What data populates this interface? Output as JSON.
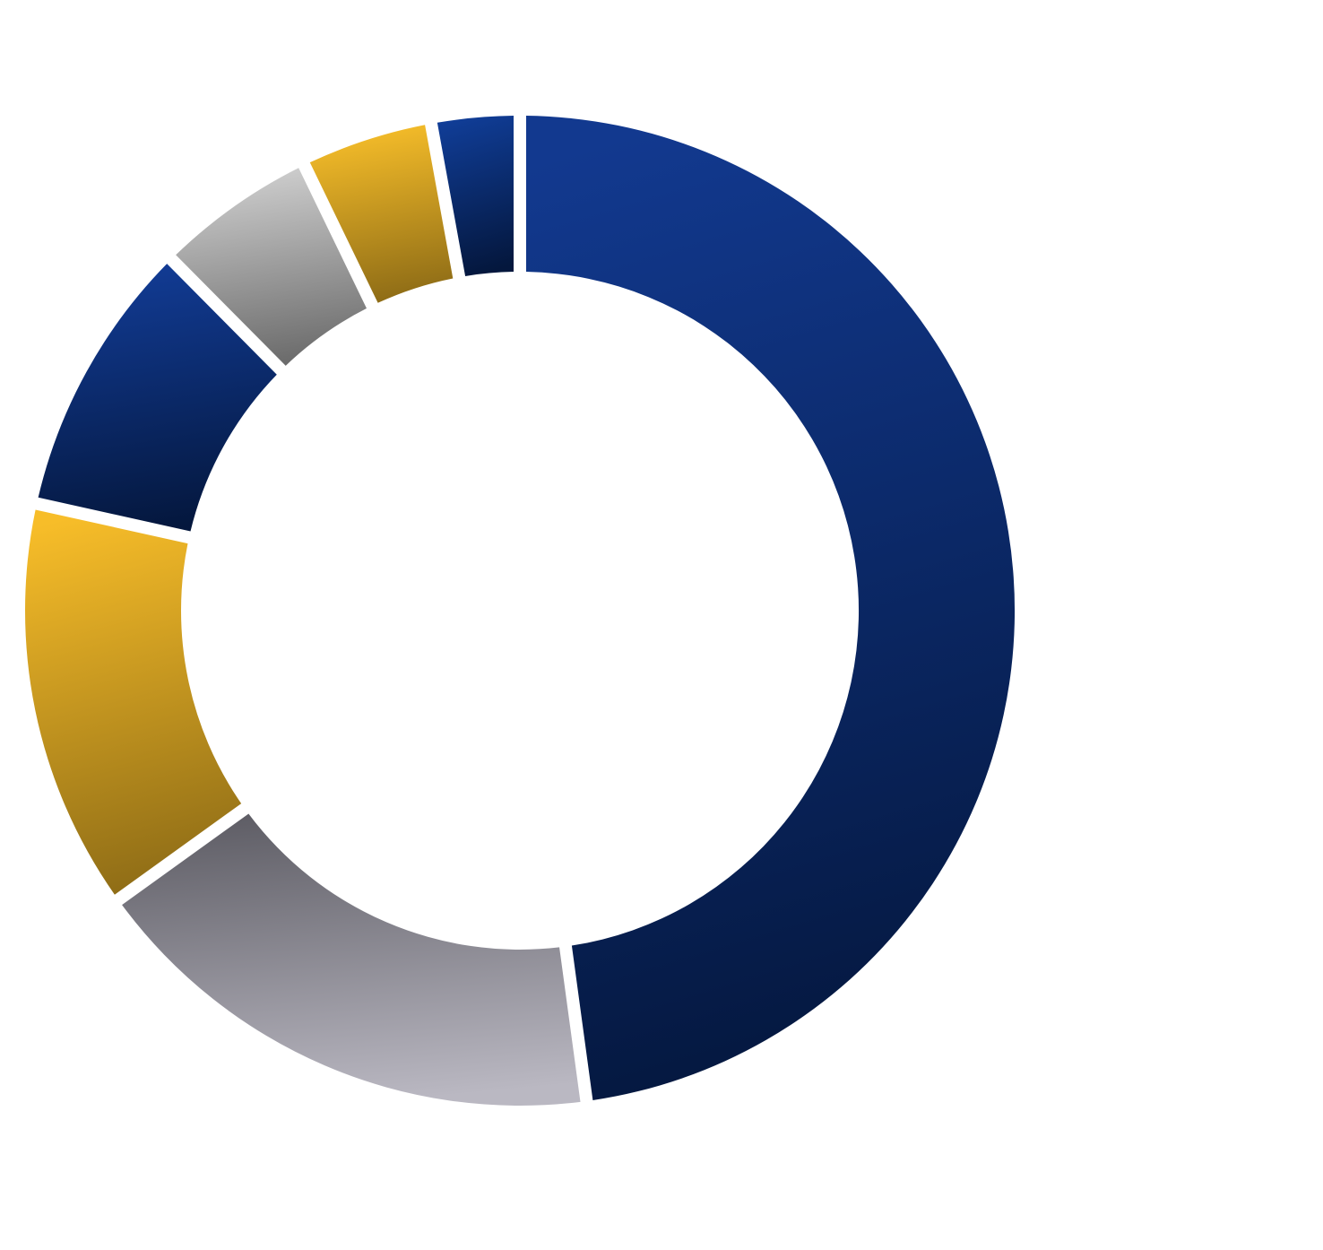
{
  "chart_data": {
    "type": "pie",
    "variant": "donut",
    "title": "",
    "series": [
      {
        "values": [
          50.0,
          18.0,
          14.0,
          9.5,
          5.5,
          4.5,
          3.0
        ],
        "colors": [
          [
            "#12398f",
            "#04173d"
          ],
          [
            "#5f5e66",
            "#bab8c2"
          ],
          [
            "#f7bd29",
            "#8e6c16"
          ],
          [
            "#123c96",
            "#04173d"
          ],
          [
            "#d0d0d0",
            "#6b6b6b"
          ],
          [
            "#f8bf2a",
            "#8e6c16"
          ],
          [
            "#103d97",
            "#04173d"
          ]
        ]
      }
    ],
    "legend": "none",
    "data_labels": "none"
  }
}
